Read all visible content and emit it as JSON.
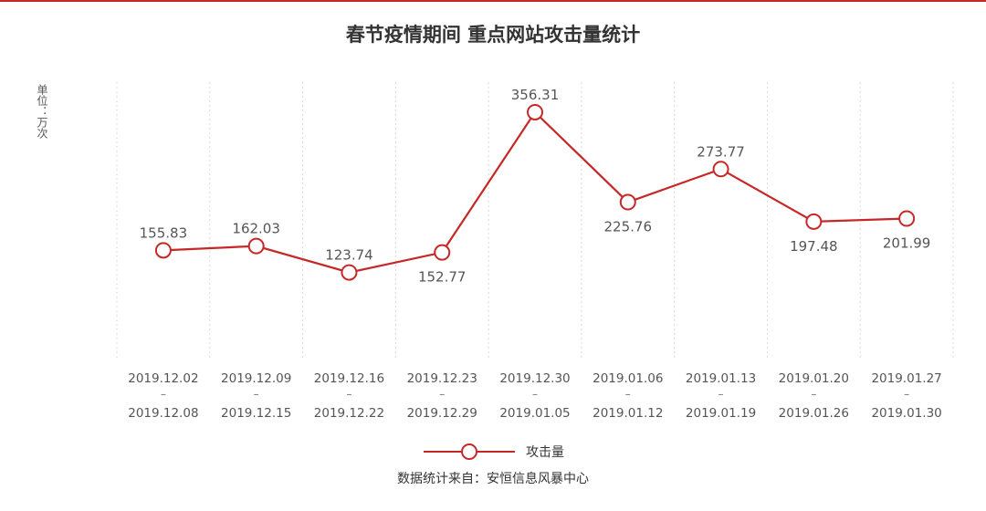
{
  "chart_data": {
    "type": "line",
    "title": "春节疫情期间  重点网站攻击量统计",
    "ylabel": "单位：万次",
    "categories": [
      [
        "2019.12.02",
        "2019.12.08"
      ],
      [
        "2019.12.09",
        "2019.12.15"
      ],
      [
        "2019.12.16",
        "2019.12.22"
      ],
      [
        "2019.12.23",
        "2019.12.29"
      ],
      [
        "2019.12.30",
        "2019.01.05"
      ],
      [
        "2019.01.06",
        "2019.01.12"
      ],
      [
        "2019.01.13",
        "2019.01.19"
      ],
      [
        "2019.01.20",
        "2019.01.26"
      ],
      [
        "2019.01.27",
        "2019.01.30"
      ]
    ],
    "category_separator": "–",
    "series": [
      {
        "name": "攻击量",
        "values": [
          155.83,
          162.03,
          123.74,
          152.77,
          356.31,
          225.76,
          273.77,
          197.48,
          201.99
        ],
        "color": "#c62828"
      }
    ],
    "ylim": [
      0,
      400
    ],
    "grid": "vertical-dotted",
    "legend": "bottom-center",
    "source": "数据统计来自：安恒信息风暴中心"
  }
}
